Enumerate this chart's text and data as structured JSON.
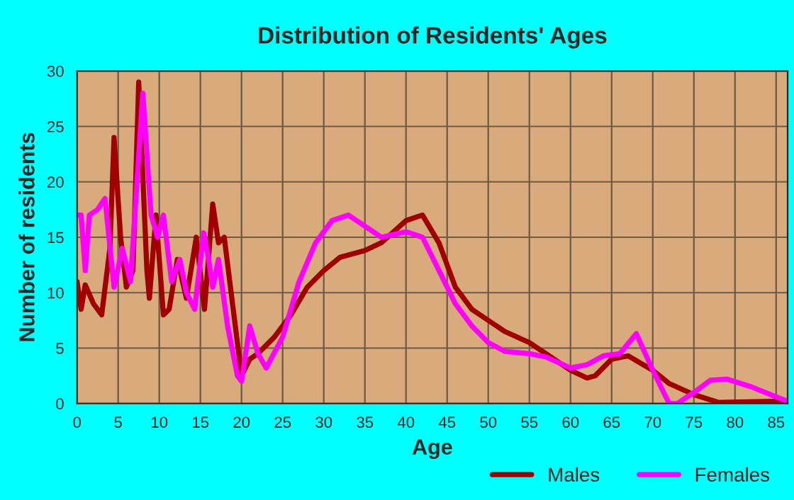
{
  "chart_data": {
    "type": "line",
    "title": "Distribution of Residents' Ages",
    "xlabel": "Age",
    "ylabel": "Number of residents",
    "xlim": [
      0,
      86.4
    ],
    "xticks": [
      0,
      5,
      10,
      15,
      20,
      25,
      30,
      35,
      40,
      45,
      50,
      55,
      60,
      65,
      70,
      75,
      80,
      85
    ],
    "ylim": [
      0,
      30
    ],
    "yticks": [
      0,
      5,
      10,
      15,
      20,
      25,
      30
    ],
    "grid": true,
    "legend": "bottom",
    "line_style": "solid",
    "marker": "none",
    "series": [
      {
        "name": "Males",
        "color": "#a00000",
        "x": [
          0,
          0.5,
          1,
          2,
          3,
          4,
          4.5,
          5.3,
          6,
          6.8,
          7.5,
          8.5,
          8.8,
          9.6,
          10.5,
          11.2,
          12.2,
          13.3,
          14.5,
          15.5,
          16.5,
          17.2,
          17.9,
          20,
          21,
          22,
          24,
          26,
          28,
          30,
          32,
          35,
          37,
          40,
          42,
          44,
          46,
          48,
          50,
          52,
          55,
          57,
          60,
          62,
          63,
          65,
          67,
          70,
          72,
          75,
          78,
          85,
          86.4
        ],
        "values": [
          11,
          8.5,
          10.7,
          9,
          8,
          14,
          24,
          15,
          10.5,
          12,
          29,
          12,
          9.5,
          17,
          8,
          8.5,
          13,
          9.5,
          15,
          8.5,
          18,
          14.5,
          15,
          2.5,
          4,
          4.5,
          6,
          8,
          10.5,
          12,
          13.2,
          13.8,
          14.5,
          16.5,
          17,
          14.5,
          10.5,
          8.5,
          7.5,
          6.5,
          5.5,
          4.5,
          3,
          2.3,
          2.5,
          4,
          4.3,
          3,
          1.8,
          0.8,
          0.1,
          0.2,
          0.2
        ]
      },
      {
        "name": "Females",
        "color": "#ff00ff",
        "x": [
          0,
          0.5,
          1,
          1.5,
          2.5,
          3.4,
          4.5,
          5.5,
          6.5,
          8,
          9,
          9.8,
          10.5,
          11.5,
          12.5,
          13.3,
          14.3,
          15.4,
          16,
          16.5,
          17.2,
          18.3,
          19.5,
          20,
          21,
          22,
          23,
          25,
          27,
          29,
          31,
          33,
          35,
          37,
          40,
          42,
          44,
          46,
          48,
          50,
          52,
          55,
          57,
          60,
          62,
          64,
          66,
          68,
          70,
          72,
          73,
          75,
          77,
          79,
          82,
          85,
          86.4
        ],
        "values": [
          17,
          17,
          12,
          17,
          17.5,
          18.5,
          10.5,
          14,
          11,
          28,
          17,
          15,
          17,
          11,
          13,
          10,
          8.5,
          15.4,
          13,
          10.5,
          13,
          7,
          2.5,
          2,
          7,
          4.5,
          3.2,
          6,
          11,
          14.5,
          16.5,
          17,
          16,
          15,
          15.5,
          15,
          12,
          9,
          7,
          5.5,
          4.7,
          4.5,
          4.2,
          3.2,
          3.5,
          4.3,
          4.5,
          6.3,
          3,
          0,
          0,
          1,
          2.1,
          2.2,
          1.5,
          0.6,
          0.2
        ]
      }
    ]
  }
}
